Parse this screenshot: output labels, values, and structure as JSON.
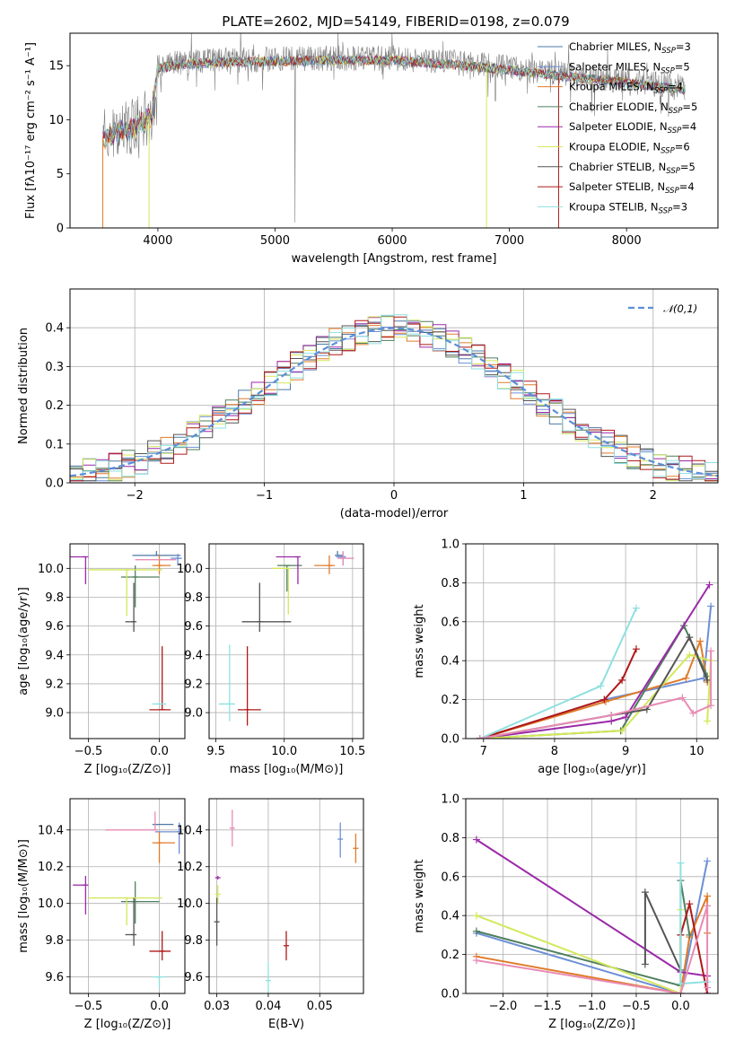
{
  "title": "PLATE=2602, MJD=54149, FIBERID=0198, z=0.079",
  "series": [
    {
      "name": "Chabrier MILES, N",
      "sub": "SSP",
      "tail": "=3",
      "color": "#4e79a7"
    },
    {
      "name": "Salpeter MILES, N",
      "sub": "SSP",
      "tail": "=5",
      "color": "#6c8fd6"
    },
    {
      "name": "Kroupa MILES, N",
      "sub": "SSP",
      "tail": "=4",
      "color": "#e07b2a"
    },
    {
      "name": "Chabrier ELODIE, N",
      "sub": "SSP",
      "tail": "=5",
      "color": "#4f7f5e"
    },
    {
      "name": "Salpeter ELODIE, N",
      "sub": "SSP",
      "tail": "=4",
      "color": "#9b2aa8"
    },
    {
      "name": "Kroupa ELODIE, N",
      "sub": "SSP",
      "tail": "=6",
      "color": "#d4e85a"
    },
    {
      "name": "Chabrier STELIB, N",
      "sub": "SSP",
      "tail": "=5",
      "color": "#555555"
    },
    {
      "name": "Salpeter STELIB, N",
      "sub": "SSP",
      "tail": "=4",
      "color": "#b01818"
    },
    {
      "name": "Kroupa STELIB, N",
      "sub": "SSP",
      "tail": "=3",
      "color": "#8fe0e0"
    }
  ],
  "chart_data": [
    {
      "id": "spectrum",
      "type": "line",
      "xlabel": "wavelength [Angstrom, rest frame]",
      "ylabel": "Flux [fλ10⁻¹⁷ erg cm⁻² s⁻¹ A⁻¹]",
      "xlim": [
        3250,
        8780
      ],
      "ylim": [
        0,
        18
      ],
      "xticks": [
        4000,
        5000,
        6000,
        7000,
        8000
      ],
      "yticks": [
        0,
        5,
        10,
        15
      ],
      "data_range": [
        3530,
        8500
      ],
      "continuum": [
        [
          3530,
          8.5
        ],
        [
          3800,
          9.5
        ],
        [
          3950,
          10.5
        ],
        [
          4000,
          15.0
        ],
        [
          4200,
          15.3
        ],
        [
          4500,
          15.5
        ],
        [
          5000,
          15.6
        ],
        [
          5500,
          15.7
        ],
        [
          6000,
          15.7
        ],
        [
          6500,
          15.3
        ],
        [
          7000,
          14.8
        ],
        [
          7500,
          14.2
        ],
        [
          8000,
          13.6
        ],
        [
          8500,
          13.0
        ]
      ],
      "grid": false,
      "legend": "right"
    },
    {
      "id": "residuals",
      "type": "line",
      "xlabel": "(data-model)/error",
      "ylabel": "Normed distribution",
      "xlim": [
        -2.5,
        2.5
      ],
      "ylim": [
        0,
        0.5
      ],
      "xticks": [
        -2,
        -1,
        0,
        1,
        2
      ],
      "yticks": [
        0.0,
        0.1,
        0.2,
        0.3,
        0.4
      ],
      "reference_curve": {
        "label": "𝒩(0,1)",
        "mean": 0,
        "sigma": 1,
        "color": "#5b8fd9"
      },
      "grid": true,
      "legend": "top-right"
    },
    {
      "id": "age_vs_Z",
      "type": "scatter",
      "xlabel": "Z [log₁₀(Z/Z⊙)]",
      "ylabel": "age  [log₁₀(age/yr)]",
      "xlim": [
        -0.63,
        0.18
      ],
      "ylim": [
        8.82,
        10.17
      ],
      "xticks": [
        -0.5,
        0.0
      ],
      "yticks": [
        9.0,
        9.2,
        9.4,
        9.6,
        9.8,
        10.0
      ],
      "grid": true,
      "points": [
        {
          "x": -0.02,
          "xerr": [
            0.17,
            0.17
          ],
          "y": 10.09,
          "yerr": [
            0.0,
            0.03
          ],
          "color": "#4e79a7"
        },
        {
          "x": 0.13,
          "xerr": [
            0.05,
            0.03
          ],
          "y": 10.07,
          "yerr": [
            0.05,
            0.03
          ],
          "color": "#6c8fd6"
        },
        {
          "x": 0.0,
          "xerr": [
            0.05,
            0.08
          ],
          "y": 10.02,
          "yerr": [
            0.06,
            0.07
          ],
          "color": "#e07b2a"
        },
        {
          "x": -0.17,
          "xerr": [
            0.1,
            0.17
          ],
          "y": 9.94,
          "yerr": [
            0.21,
            0.08
          ],
          "color": "#4f7f5e"
        },
        {
          "x": -0.52,
          "xerr": [
            0.22,
            0.0
          ],
          "y": 10.08,
          "yerr": [
            0.19,
            0.0
          ],
          "color": "#9b2aa8"
        },
        {
          "x": -0.23,
          "xerr": [
            0.27,
            0.25
          ],
          "y": 9.99,
          "yerr": [
            0.32,
            0.0
          ],
          "color": "#d4e85a"
        },
        {
          "x": -0.18,
          "xerr": [
            0.06,
            0.0
          ],
          "y": 9.63,
          "yerr": [
            0.07,
            0.27
          ],
          "color": "#555555"
        },
        {
          "x": 0.02,
          "xerr": [
            0.09,
            0.06
          ],
          "y": 9.02,
          "yerr": [
            0.0,
            0.44
          ],
          "color": "#b01818"
        },
        {
          "x": 0.0,
          "xerr": [
            0.05,
            0.05
          ],
          "y": 9.06,
          "yerr": [
            0.0,
            0.0
          ],
          "color": "#8fe0e0"
        },
        {
          "x": 0.1,
          "xerr": [
            0.27,
            0.0
          ],
          "y": 10.06,
          "yerr": [
            0.0,
            0.0
          ],
          "color": "#e88bb4"
        }
      ]
    },
    {
      "id": "age_vs_mass",
      "type": "scatter",
      "xlabel": "mass [log₁₀(M/M⊙)]",
      "ylabel": "",
      "xlim": [
        9.45,
        10.58
      ],
      "ylim": [
        8.82,
        10.17
      ],
      "xticks": [
        9.5,
        10.0,
        10.5
      ],
      "yticks": [
        9.0,
        9.2,
        9.4,
        9.6,
        9.8,
        10.0
      ],
      "grid": true,
      "points": [
        {
          "x": 10.39,
          "xerr": [
            0.0,
            0.04
          ],
          "y": 10.09,
          "yerr": [
            0.0,
            0.03
          ],
          "color": "#4e79a7"
        },
        {
          "x": 10.43,
          "xerr": [
            0.05,
            0.02
          ],
          "y": 10.08,
          "yerr": [
            0.06,
            0.03
          ],
          "color": "#6c8fd6"
        },
        {
          "x": 10.33,
          "xerr": [
            0.11,
            0.04
          ],
          "y": 10.02,
          "yerr": [
            0.06,
            0.07
          ],
          "color": "#e07b2a"
        },
        {
          "x": 10.02,
          "xerr": [
            0.07,
            0.11
          ],
          "y": 10.02,
          "yerr": [
            0.18,
            0.0
          ],
          "color": "#4f7f5e"
        },
        {
          "x": 10.1,
          "xerr": [
            0.16,
            0.0
          ],
          "y": 10.08,
          "yerr": [
            0.19,
            0.0
          ],
          "color": "#9b2aa8"
        },
        {
          "x": 10.03,
          "xerr": [
            0.12,
            0.0
          ],
          "y": 10.0,
          "yerr": [
            0.32,
            0.0
          ],
          "color": "#d4e85a"
        },
        {
          "x": 9.82,
          "xerr": [
            0.13,
            0.23
          ],
          "y": 9.63,
          "yerr": [
            0.07,
            0.27
          ],
          "color": "#555555"
        },
        {
          "x": 9.73,
          "xerr": [
            0.07,
            0.1
          ],
          "y": 9.02,
          "yerr": [
            0.11,
            0.44
          ],
          "color": "#b01818"
        },
        {
          "x": 9.6,
          "xerr": [
            0.08,
            0.04
          ],
          "y": 9.06,
          "yerr": [
            0.12,
            0.41
          ],
          "color": "#8fe0e0"
        },
        {
          "x": 10.43,
          "xerr": [
            0.04,
            0.08
          ],
          "y": 10.07,
          "yerr": [
            0.05,
            0.05
          ],
          "color": "#e88bb4"
        }
      ]
    },
    {
      "id": "weight_vs_age",
      "type": "line",
      "xlabel": "age  [log₁₀(age/yr)]",
      "ylabel": "mass weight",
      "xlim": [
        6.75,
        10.3
      ],
      "ylim": [
        0,
        1.0
      ],
      "xticks": [
        7,
        8,
        9,
        10
      ],
      "yticks": [
        0.0,
        0.2,
        0.4,
        0.6,
        0.8,
        1.0
      ],
      "grid": true,
      "lines": [
        {
          "color": "#6c8fd6",
          "x": [
            6.95,
            8.7,
            10.1,
            10.2
          ],
          "y": [
            0.0,
            0.2,
            0.31,
            0.68
          ]
        },
        {
          "color": "#e07b2a",
          "x": [
            6.95,
            8.72,
            9.85,
            10.05,
            10.15
          ],
          "y": [
            0.0,
            0.19,
            0.31,
            0.5,
            0.29
          ]
        },
        {
          "color": "#4f7f5e",
          "x": [
            6.95,
            8.93,
            9.82,
            10.15
          ],
          "y": [
            0.0,
            0.04,
            0.58,
            0.32
          ]
        },
        {
          "color": "#9b2aa8",
          "x": [
            6.95,
            8.8,
            9.0,
            10.18
          ],
          "y": [
            0.0,
            0.09,
            0.11,
            0.79
          ]
        },
        {
          "color": "#d4e85a",
          "x": [
            6.95,
            8.95,
            9.9,
            10.2,
            10.15
          ],
          "y": [
            0.0,
            0.04,
            0.43,
            0.4,
            0.09
          ]
        },
        {
          "color": "#555555",
          "x": [
            6.95,
            8.8,
            9.3,
            9.9,
            10.15
          ],
          "y": [
            0.0,
            0.12,
            0.15,
            0.52,
            0.3
          ]
        },
        {
          "color": "#b01818",
          "x": [
            6.95,
            8.7,
            8.95,
            9.15
          ],
          "y": [
            0.0,
            0.2,
            0.3,
            0.46
          ]
        },
        {
          "color": "#8fe0e0",
          "x": [
            6.95,
            8.65,
            9.15
          ],
          "y": [
            0.0,
            0.27,
            0.67
          ]
        },
        {
          "color": "#e88bb4",
          "x": [
            6.95,
            8.8,
            9.8,
            9.95,
            10.2,
            10.2
          ],
          "y": [
            0.0,
            0.12,
            0.21,
            0.13,
            0.17,
            0.45
          ]
        }
      ]
    },
    {
      "id": "mass_vs_Z",
      "type": "scatter",
      "xlabel": "Z [log₁₀(Z/Z⊙)]",
      "ylabel": "mass [log₁₀(M/M⊙)]",
      "xlim": [
        -0.63,
        0.18
      ],
      "ylim": [
        9.51,
        10.57
      ],
      "xticks": [
        -0.5,
        0.0
      ],
      "yticks": [
        9.6,
        9.8,
        10.0,
        10.2,
        10.4
      ],
      "grid": true,
      "points": [
        {
          "x": -0.03,
          "xerr": [
            0.0,
            0.13
          ],
          "y": 10.43,
          "yerr": [
            0.0,
            0.0
          ],
          "color": "#4e79a7"
        },
        {
          "x": 0.14,
          "xerr": [
            0.17,
            0.0
          ],
          "y": 10.39,
          "yerr": [
            0.12,
            0.05
          ],
          "color": "#6c8fd6"
        },
        {
          "x": 0.0,
          "xerr": [
            0.05,
            0.11
          ],
          "y": 10.33,
          "yerr": [
            0.11,
            0.06
          ],
          "color": "#e07b2a"
        },
        {
          "x": -0.17,
          "xerr": [
            0.1,
            0.17
          ],
          "y": 10.01,
          "yerr": [
            0.12,
            0.11
          ],
          "color": "#4f7f5e"
        },
        {
          "x": -0.52,
          "xerr": [
            0.09,
            0.0
          ],
          "y": 10.1,
          "yerr": [
            0.16,
            0.05
          ],
          "color": "#9b2aa8"
        },
        {
          "x": -0.23,
          "xerr": [
            0.27,
            0.25
          ],
          "y": 10.03,
          "yerr": [
            0.15,
            0.0
          ],
          "color": "#d4e85a"
        },
        {
          "x": -0.18,
          "xerr": [
            0.06,
            0.0
          ],
          "y": 9.83,
          "yerr": [
            0.06,
            0.2
          ],
          "color": "#555555"
        },
        {
          "x": 0.02,
          "xerr": [
            0.09,
            0.06
          ],
          "y": 9.74,
          "yerr": [
            0.05,
            0.11
          ],
          "color": "#b01818"
        },
        {
          "x": 0.0,
          "xerr": [
            0.05,
            0.05
          ],
          "y": 9.6,
          "yerr": [
            0.06,
            0.0
          ],
          "color": "#8fe0e0"
        },
        {
          "x": -0.03,
          "xerr": [
            0.35,
            0.0
          ],
          "y": 10.4,
          "yerr": [
            0.0,
            0.1
          ],
          "color": "#e88bb4"
        }
      ]
    },
    {
      "id": "mass_vs_EBV",
      "type": "scatter",
      "xlabel": "E(B-V)",
      "ylabel": "",
      "xlim": [
        0.0285,
        0.0585
      ],
      "ylim": [
        9.51,
        10.57
      ],
      "xticks": [
        0.03,
        0.04,
        0.05
      ],
      "yticks": [
        9.6,
        9.8,
        10.0,
        10.2,
        10.4
      ],
      "grid": true,
      "points": [
        {
          "x": 0.054,
          "xerr": [
            0.0,
            0.0
          ],
          "y": 10.35,
          "yerr": [
            0.1,
            0.09
          ],
          "color": "#6c8fd6"
        },
        {
          "x": 0.057,
          "xerr": [
            0.0,
            0.0
          ],
          "y": 10.3,
          "yerr": [
            0.08,
            0.08
          ],
          "color": "#e07b2a"
        },
        {
          "x": 0.0302,
          "xerr": [
            0.0,
            0.0
          ],
          "y": 10.14,
          "yerr": [
            0.01,
            0.01
          ],
          "color": "#9b2aa8"
        },
        {
          "x": 0.0302,
          "xerr": [
            0.0,
            0.0
          ],
          "y": 10.05,
          "yerr": [
            0.05,
            0.05
          ],
          "color": "#d4e85a"
        },
        {
          "x": 0.03,
          "xerr": [
            0.0,
            0.0
          ],
          "y": 9.9,
          "yerr": [
            0.13,
            0.13
          ],
          "color": "#555555"
        },
        {
          "x": 0.0435,
          "xerr": [
            0.0,
            0.0
          ],
          "y": 9.77,
          "yerr": [
            0.08,
            0.08
          ],
          "color": "#b01818"
        },
        {
          "x": 0.04,
          "xerr": [
            0.0,
            0.0
          ],
          "y": 9.58,
          "yerr": [
            0.12,
            0.1
          ],
          "color": "#8fe0e0"
        },
        {
          "x": 0.033,
          "xerr": [
            0.0,
            0.0
          ],
          "y": 10.41,
          "yerr": [
            0.1,
            0.1
          ],
          "color": "#e88bb4"
        }
      ]
    },
    {
      "id": "weight_vs_Z",
      "type": "line",
      "xlabel": "Z [log₁₀(Z/Z⊙)]",
      "ylabel": "mass weight",
      "xlim": [
        -2.42,
        0.42
      ],
      "ylim": [
        0,
        1.0
      ],
      "xticks": [
        -2.0,
        -1.5,
        -1.0,
        -0.5,
        0.0
      ],
      "yticks": [
        0.0,
        0.2,
        0.4,
        0.6,
        0.8,
        1.0
      ],
      "grid": true,
      "lines": [
        {
          "color": "#6c8fd6",
          "x": [
            -2.3,
            0.0,
            0.3
          ],
          "y": [
            0.31,
            0.0,
            0.68
          ]
        },
        {
          "color": "#e07b2a",
          "x": [
            -2.3,
            0.0,
            0.1,
            0.3,
            0.3
          ],
          "y": [
            0.19,
            0.0,
            0.29,
            0.5,
            0.31
          ]
        },
        {
          "color": "#4f7f5e",
          "x": [
            -2.3,
            0.0,
            0.0,
            0.1
          ],
          "y": [
            0.32,
            0.04,
            0.58,
            0.3
          ]
        },
        {
          "color": "#9b2aa8",
          "x": [
            -2.3,
            0.0,
            0.3,
            0.3
          ],
          "y": [
            0.79,
            0.11,
            0.09,
            0.0
          ]
        },
        {
          "color": "#d4e85a",
          "x": [
            -2.3,
            0.0,
            0.0
          ],
          "y": [
            0.4,
            0.0,
            0.43
          ]
        },
        {
          "color": "#555555",
          "x": [
            -0.4,
            -0.4,
            0.0,
            0.0
          ],
          "y": [
            0.15,
            0.52,
            0.12,
            0.3
          ]
        },
        {
          "color": "#b01818",
          "x": [
            0.0,
            0.1,
            0.3
          ],
          "y": [
            0.3,
            0.46,
            0.0
          ]
        },
        {
          "color": "#8fe0e0",
          "x": [
            0.0,
            0.0,
            0.3
          ],
          "y": [
            0.67,
            0.05,
            0.06
          ]
        },
        {
          "color": "#e88bb4",
          "x": [
            -2.3,
            0.0,
            0.3,
            0.3
          ],
          "y": [
            0.17,
            0.0,
            0.45,
            0.03
          ]
        }
      ]
    }
  ]
}
